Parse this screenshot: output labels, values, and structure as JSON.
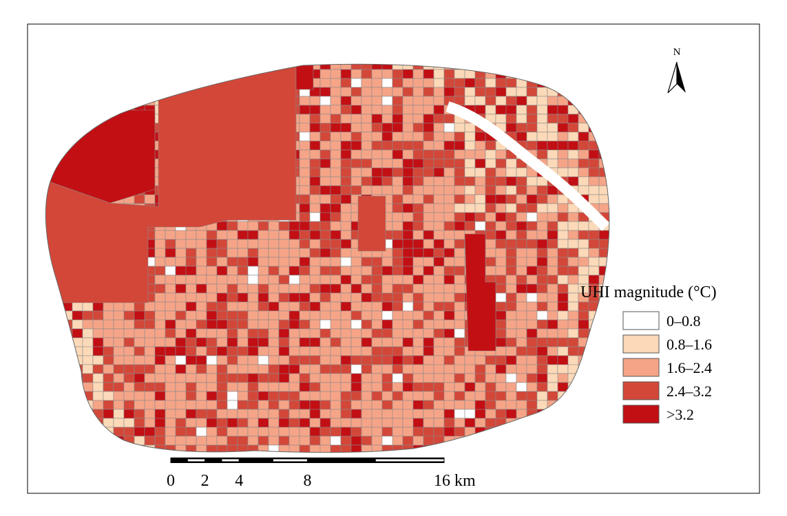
{
  "north_label": "N",
  "legend": {
    "title": "UHI magnitude (°C)",
    "classes": [
      {
        "label": "0–0.8",
        "color": "#ffffff"
      },
      {
        "label": "0.8–1.6",
        "color": "#fcd9b8"
      },
      {
        "label": "1.6–2.4",
        "color": "#f6a487"
      },
      {
        "label": "2.4–3.2",
        "color": "#d34739"
      },
      {
        "label": ">3.2",
        "color": "#c20f14"
      }
    ]
  },
  "scale_bar": {
    "ticks": [
      {
        "value": 0,
        "label": "0"
      },
      {
        "value": 2,
        "label": "2"
      },
      {
        "value": 4,
        "label": "4"
      },
      {
        "value": 8,
        "label": "8"
      },
      {
        "value": 16,
        "label": "16 km"
      }
    ]
  }
}
